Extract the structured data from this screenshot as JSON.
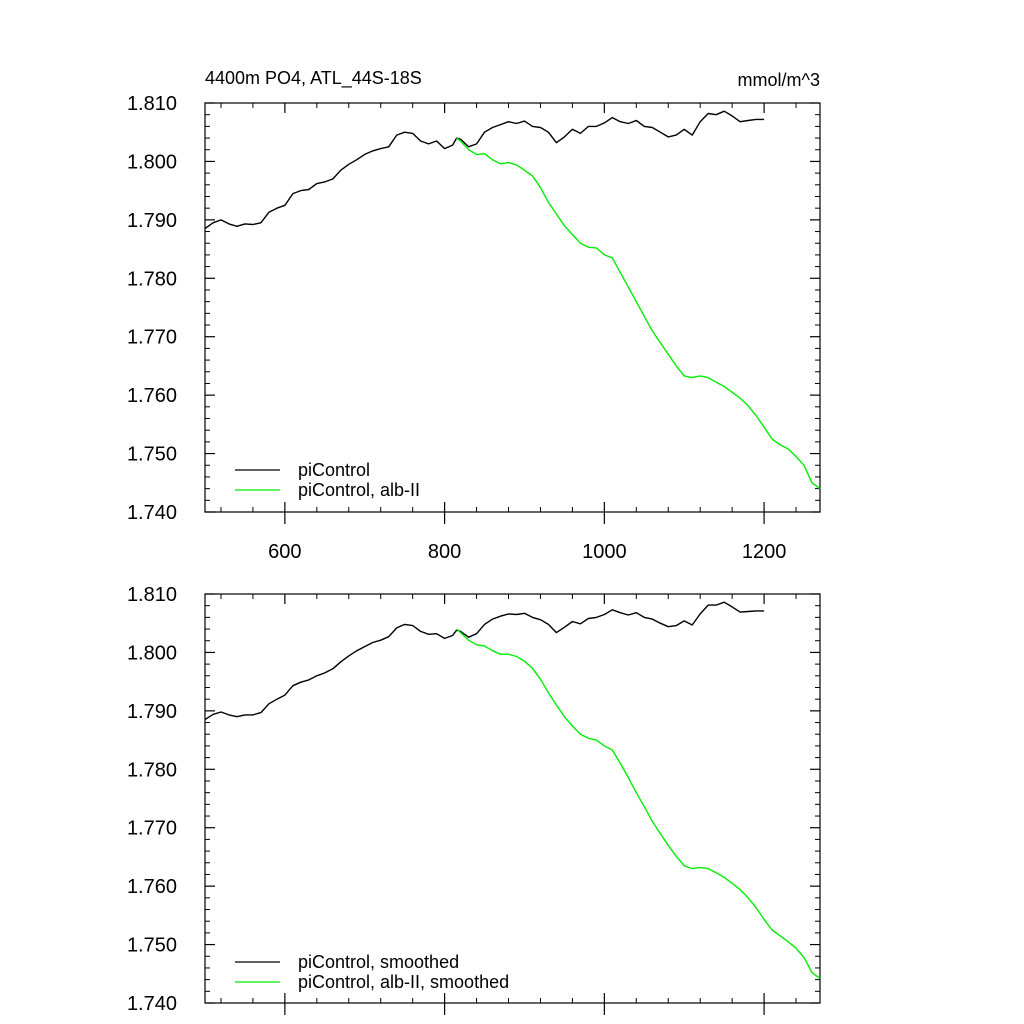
{
  "chart_data": [
    {
      "type": "line",
      "title": "4400m PO4, ATL_44S-18S",
      "units": "mmol/m^3",
      "xlim": [
        500,
        1270
      ],
      "ylim": [
        1.74,
        1.81
      ],
      "xticks": [
        600,
        800,
        1000,
        1200
      ],
      "xtick_labels": [
        "600",
        "800",
        "1000",
        "1200"
      ],
      "yticks": [
        1.74,
        1.75,
        1.76,
        1.77,
        1.78,
        1.79,
        1.8,
        1.81
      ],
      "ytick_labels": [
        "1.740",
        "1.750",
        "1.760",
        "1.770",
        "1.780",
        "1.790",
        "1.800",
        "1.810"
      ],
      "legend_position": "bottom-left",
      "series": [
        {
          "name": "piControl",
          "color": "#000000",
          "x": [
            500,
            510,
            520,
            530,
            540,
            550,
            560,
            570,
            580,
            590,
            600,
            610,
            620,
            630,
            640,
            650,
            660,
            670,
            680,
            690,
            700,
            710,
            720,
            730,
            740,
            750,
            760,
            770,
            780,
            790,
            800,
            810,
            815,
            820,
            830,
            840,
            850,
            860,
            870,
            880,
            890,
            900,
            910,
            920,
            930,
            940,
            950,
            960,
            970,
            980,
            990,
            1000,
            1010,
            1020,
            1030,
            1040,
            1050,
            1060,
            1070,
            1080,
            1090,
            1100,
            1110,
            1120,
            1130,
            1140,
            1150,
            1160,
            1170,
            1180,
            1190,
            1200
          ],
          "values": [
            1.7885,
            1.7895,
            1.79,
            1.7893,
            1.7889,
            1.7893,
            1.7892,
            1.7895,
            1.7913,
            1.792,
            1.7925,
            1.7945,
            1.795,
            1.7952,
            1.7962,
            1.7965,
            1.797,
            1.7985,
            1.7995,
            1.8003,
            1.8012,
            1.8018,
            1.8022,
            1.8025,
            1.8045,
            1.805,
            1.8048,
            1.8035,
            1.803,
            1.8035,
            1.8022,
            1.8028,
            1.804,
            1.8038,
            1.8025,
            1.803,
            1.805,
            1.8058,
            1.8063,
            1.8068,
            1.8065,
            1.8069,
            1.806,
            1.8058,
            1.805,
            1.8032,
            1.8042,
            1.8055,
            1.8048,
            1.806,
            1.806,
            1.8066,
            1.8075,
            1.8068,
            1.8065,
            1.807,
            1.806,
            1.8058,
            1.805,
            1.8042,
            1.8045,
            1.8055,
            1.8045,
            1.8068,
            1.8082,
            1.808,
            1.8086,
            1.8078,
            1.8068,
            1.807,
            1.8072,
            1.8072
          ]
        },
        {
          "name": "piControl, alb-II",
          "color": "#00ee00",
          "x": [
            815,
            820,
            830,
            840,
            850,
            860,
            870,
            880,
            890,
            900,
            910,
            920,
            930,
            940,
            950,
            960,
            970,
            980,
            990,
            1000,
            1010,
            1020,
            1030,
            1040,
            1050,
            1060,
            1070,
            1080,
            1090,
            1100,
            1110,
            1120,
            1130,
            1140,
            1150,
            1160,
            1170,
            1180,
            1190,
            1200,
            1210,
            1220,
            1230,
            1240,
            1250,
            1260,
            1270
          ],
          "values": [
            1.804,
            1.8035,
            1.802,
            1.8012,
            1.8013,
            1.8003,
            1.7996,
            1.7998,
            1.7994,
            1.7985,
            1.7975,
            1.7955,
            1.793,
            1.791,
            1.789,
            1.7875,
            1.786,
            1.7853,
            1.7852,
            1.784,
            1.7835,
            1.781,
            1.7785,
            1.776,
            1.7735,
            1.771,
            1.769,
            1.767,
            1.765,
            1.7633,
            1.763,
            1.7633,
            1.763,
            1.7622,
            1.7615,
            1.7605,
            1.7595,
            1.7582,
            1.7565,
            1.7545,
            1.7525,
            1.7515,
            1.7508,
            1.7495,
            1.748,
            1.745,
            1.744
          ]
        }
      ]
    },
    {
      "type": "line",
      "title": "",
      "units": "",
      "xlim": [
        500,
        1270
      ],
      "ylim": [
        1.74,
        1.81
      ],
      "xticks": [
        600,
        800,
        1000,
        1200
      ],
      "xtick_labels": [],
      "yticks": [
        1.74,
        1.75,
        1.76,
        1.77,
        1.78,
        1.79,
        1.8,
        1.81
      ],
      "ytick_labels": [
        "1.740",
        "1.750",
        "1.760",
        "1.770",
        "1.780",
        "1.790",
        "1.800",
        "1.810"
      ],
      "legend_position": "bottom-left",
      "series": [
        {
          "name": "piControl, smoothed",
          "color": "#000000",
          "x": [
            500,
            510,
            520,
            530,
            540,
            550,
            560,
            570,
            580,
            590,
            600,
            610,
            620,
            630,
            640,
            650,
            660,
            670,
            680,
            690,
            700,
            710,
            720,
            730,
            740,
            750,
            760,
            770,
            780,
            790,
            800,
            810,
            815,
            820,
            830,
            840,
            850,
            860,
            870,
            880,
            890,
            900,
            910,
            920,
            930,
            940,
            950,
            960,
            970,
            980,
            990,
            1000,
            1010,
            1020,
            1030,
            1040,
            1050,
            1060,
            1070,
            1080,
            1090,
            1100,
            1110,
            1120,
            1130,
            1140,
            1150,
            1160,
            1170,
            1180,
            1190,
            1200
          ],
          "values": [
            1.7885,
            1.7894,
            1.7898,
            1.7893,
            1.789,
            1.7893,
            1.7893,
            1.7897,
            1.7912,
            1.792,
            1.7927,
            1.7943,
            1.7949,
            1.7953,
            1.796,
            1.7965,
            1.7972,
            1.7984,
            1.7994,
            1.8003,
            1.801,
            1.8017,
            1.8021,
            1.8027,
            1.8042,
            1.8048,
            1.8046,
            1.8036,
            1.8031,
            1.8032,
            1.8024,
            1.8029,
            1.8038,
            1.8036,
            1.8026,
            1.8032,
            1.8048,
            1.8057,
            1.8062,
            1.8066,
            1.8065,
            1.8067,
            1.806,
            1.8056,
            1.8048,
            1.8034,
            1.8043,
            1.8053,
            1.8049,
            1.8058,
            1.806,
            1.8065,
            1.8073,
            1.8068,
            1.8064,
            1.8068,
            1.806,
            1.8057,
            1.805,
            1.8044,
            1.8046,
            1.8054,
            1.8047,
            1.8066,
            1.8081,
            1.8081,
            1.8086,
            1.8078,
            1.8069,
            1.807,
            1.8071,
            1.8071
          ]
        },
        {
          "name": "piControl, alb-II, smoothed",
          "color": "#00ee00",
          "x": [
            815,
            820,
            830,
            840,
            850,
            860,
            870,
            880,
            890,
            900,
            910,
            920,
            930,
            940,
            950,
            960,
            970,
            980,
            990,
            1000,
            1010,
            1020,
            1030,
            1040,
            1050,
            1060,
            1070,
            1080,
            1090,
            1100,
            1110,
            1120,
            1130,
            1140,
            1150,
            1160,
            1170,
            1180,
            1190,
            1200,
            1210,
            1220,
            1230,
            1240,
            1250,
            1260,
            1270
          ],
          "values": [
            1.804,
            1.8034,
            1.8021,
            1.8013,
            1.8011,
            1.8003,
            1.7997,
            1.7997,
            1.7993,
            1.7985,
            1.7973,
            1.7954,
            1.7931,
            1.791,
            1.789,
            1.7874,
            1.786,
            1.7853,
            1.785,
            1.784,
            1.7833,
            1.781,
            1.7786,
            1.776,
            1.7736,
            1.7711,
            1.769,
            1.767,
            1.7651,
            1.7635,
            1.763,
            1.7632,
            1.763,
            1.7623,
            1.7615,
            1.7605,
            1.7594,
            1.758,
            1.7563,
            1.7543,
            1.7525,
            1.7515,
            1.7505,
            1.7494,
            1.7478,
            1.7452,
            1.7442
          ]
        }
      ]
    }
  ]
}
